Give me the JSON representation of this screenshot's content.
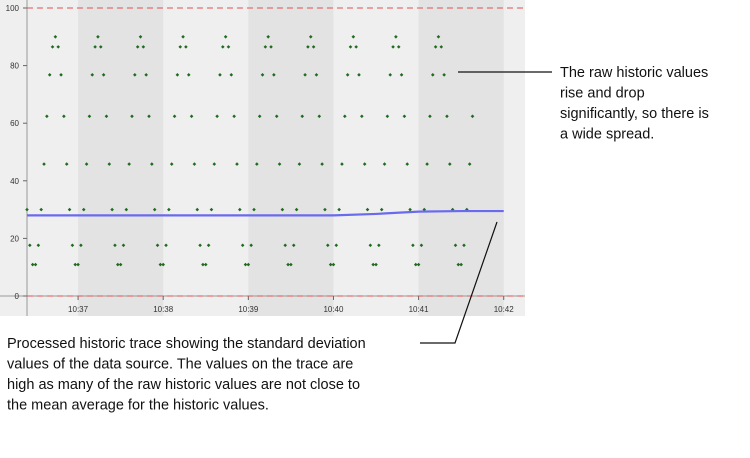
{
  "chart_data": {
    "type": "scatter-line",
    "xlim": [
      24,
      375
    ],
    "xticks": [
      {
        "value": 60,
        "label": "10:37"
      },
      {
        "value": 120,
        "label": "10:38"
      },
      {
        "value": 180,
        "label": "10:39"
      },
      {
        "value": 240,
        "label": "10:40"
      },
      {
        "value": 300,
        "label": "10:41"
      },
      {
        "value": 360,
        "label": "10:42"
      }
    ],
    "ylim": [
      0,
      100
    ],
    "yticks": [
      0,
      20,
      40,
      60,
      80,
      100
    ],
    "limit_lines": [
      0,
      100
    ],
    "series": [
      {
        "type": "scatter",
        "color": "#1f6b1f",
        "x": [
          24,
          26,
          28,
          30,
          32,
          34,
          36,
          38,
          40,
          42,
          44,
          46,
          48,
          50,
          52,
          54,
          56,
          58,
          60,
          62,
          64,
          66,
          68,
          70,
          72,
          74,
          76,
          78,
          80,
          82,
          84,
          86,
          88,
          90,
          92,
          94,
          96,
          98,
          100,
          102,
          104,
          106,
          108,
          110,
          112,
          114,
          116,
          118,
          120,
          122,
          124,
          126,
          128,
          130,
          132,
          134,
          136,
          138,
          140,
          142,
          144,
          146,
          148,
          150,
          152,
          154,
          156,
          158,
          160,
          162,
          164,
          166,
          168,
          170,
          172,
          174,
          176,
          178,
          180,
          182,
          184,
          186,
          188,
          190,
          192,
          194,
          196,
          198,
          200,
          202,
          204,
          206,
          208,
          210,
          212,
          214,
          216,
          218,
          220,
          222,
          224,
          226,
          228,
          230,
          232,
          234,
          236,
          238,
          240,
          242,
          244,
          246,
          248,
          250,
          252,
          254,
          256,
          258,
          260,
          262,
          264,
          266,
          268,
          270,
          272,
          274,
          276,
          278,
          280,
          282,
          284,
          286,
          288,
          290,
          292,
          294,
          296,
          298,
          300,
          302,
          304,
          306,
          308,
          310,
          312,
          314,
          316,
          318,
          320,
          322,
          324,
          326,
          328,
          330,
          332,
          334,
          336,
          338
        ],
        "values": [
          30,
          17.6,
          10.9,
          10.9,
          17.6,
          30,
          45.8,
          62.4,
          76.8,
          86.5,
          90,
          86.5,
          76.8,
          62.4,
          45.8,
          30,
          17.6,
          10.9,
          10.9,
          17.6,
          30,
          45.8,
          62.4,
          76.8,
          86.5,
          90,
          86.5,
          76.8,
          62.4,
          45.8,
          30,
          17.6,
          10.9,
          10.9,
          17.6,
          30,
          45.8,
          62.4,
          76.8,
          86.5,
          90,
          86.5,
          76.8,
          62.4,
          45.8,
          30,
          17.6,
          10.9,
          10.9,
          17.6,
          30,
          45.8,
          62.4,
          76.8,
          86.5,
          90,
          86.5,
          76.8,
          62.4,
          45.8,
          30,
          17.6,
          10.9,
          10.9,
          17.6,
          30,
          45.8,
          62.4,
          76.8,
          86.5,
          90,
          86.5,
          76.8,
          62.4,
          45.8,
          30,
          17.6,
          10.9,
          10.9,
          17.6,
          30,
          45.8,
          62.4,
          76.8,
          86.5,
          90,
          86.5,
          76.8,
          62.4,
          45.8,
          30,
          17.6,
          10.9,
          10.9,
          17.6,
          30,
          45.8,
          62.4,
          76.8,
          86.5,
          90,
          86.5,
          76.8,
          62.4,
          45.8,
          30,
          17.6,
          10.9,
          10.9,
          17.6,
          30,
          45.8,
          62.4,
          76.8,
          86.5,
          90,
          86.5,
          76.8,
          62.4,
          45.8,
          30,
          17.6,
          10.9,
          10.9,
          17.6,
          30,
          45.8,
          62.4,
          76.8,
          86.5,
          90,
          86.5,
          76.8,
          62.4,
          45.8,
          30,
          17.6,
          10.9,
          10.9,
          17.6,
          30,
          45.8,
          62.4,
          76.8,
          86.5,
          90,
          86.5,
          76.8,
          62.4,
          45.8,
          30,
          17.6,
          10.9,
          10.9,
          17.6,
          30,
          45.8,
          62.4
        ]
      },
      {
        "type": "line",
        "color": "#6a6aee",
        "x": [
          24,
          60,
          120,
          180,
          240,
          270,
          300,
          330,
          360
        ],
        "values": [
          28,
          28,
          28,
          28,
          28,
          28.5,
          29.3,
          29.5,
          29.5
        ]
      }
    ],
    "annotations": [
      {
        "lines": [
          "The raw historic values",
          "rise and drop",
          "significantly, so there is",
          "a wide spread."
        ]
      },
      {
        "lines": [
          "Processed historic trace showing the standard deviation",
          "values of the data source. The values on the trace are",
          "high as many of the raw historic values are not close to",
          "the mean average for the historic values."
        ]
      }
    ]
  }
}
